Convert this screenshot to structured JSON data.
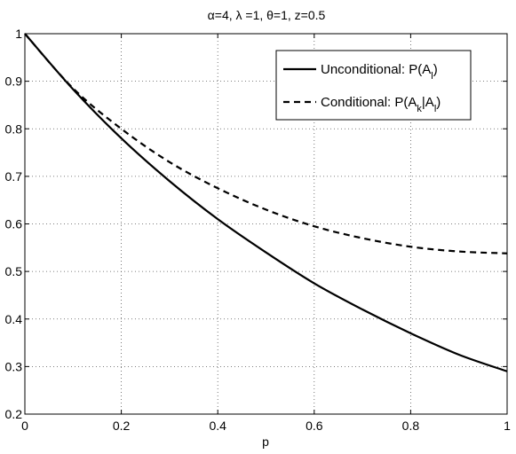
{
  "chart_data": {
    "type": "line",
    "title": "α=4, λ =1, θ=1, z=0.5",
    "xlabel": "p",
    "ylabel": "",
    "xlim": [
      0,
      1
    ],
    "ylim": [
      0.2,
      1
    ],
    "x_ticks": [
      0,
      0.2,
      0.4,
      0.6,
      0.8,
      1
    ],
    "x_tick_labels": [
      "0",
      "0.2",
      "0.4",
      "0.6",
      "0.8",
      "1"
    ],
    "y_ticks": [
      0.2,
      0.3,
      0.4,
      0.5,
      0.6,
      0.7,
      0.8,
      0.9,
      1
    ],
    "y_tick_labels": [
      "0.2",
      "0.3",
      "0.4",
      "0.5",
      "0.6",
      "0.7",
      "0.8",
      "0.9",
      "1"
    ],
    "grid": true,
    "legend_position": "top-right",
    "x": [
      0,
      0.1,
      0.2,
      0.3,
      0.4,
      0.5,
      0.6,
      0.7,
      0.8,
      0.9,
      1.0
    ],
    "series": [
      {
        "name": "Unconditional: P(A_l)",
        "legend_main": "Unconditional: P(A",
        "legend_sub": "l",
        "legend_tail": ")",
        "style": "solid",
        "color": "#000000",
        "values": [
          1.0,
          0.883,
          0.78,
          0.69,
          0.61,
          0.54,
          0.475,
          0.42,
          0.37,
          0.325,
          0.29
        ]
      },
      {
        "name": "Conditional: P(A_k|A_l)",
        "legend_main": "Conditional: P(A",
        "legend_sub": "k",
        "legend_mid": "|A",
        "legend_sub2": "l",
        "legend_tail": ")",
        "style": "dashed",
        "color": "#000000",
        "values": [
          1.0,
          0.885,
          0.8,
          0.73,
          0.675,
          0.63,
          0.595,
          0.57,
          0.552,
          0.542,
          0.538
        ]
      }
    ]
  }
}
